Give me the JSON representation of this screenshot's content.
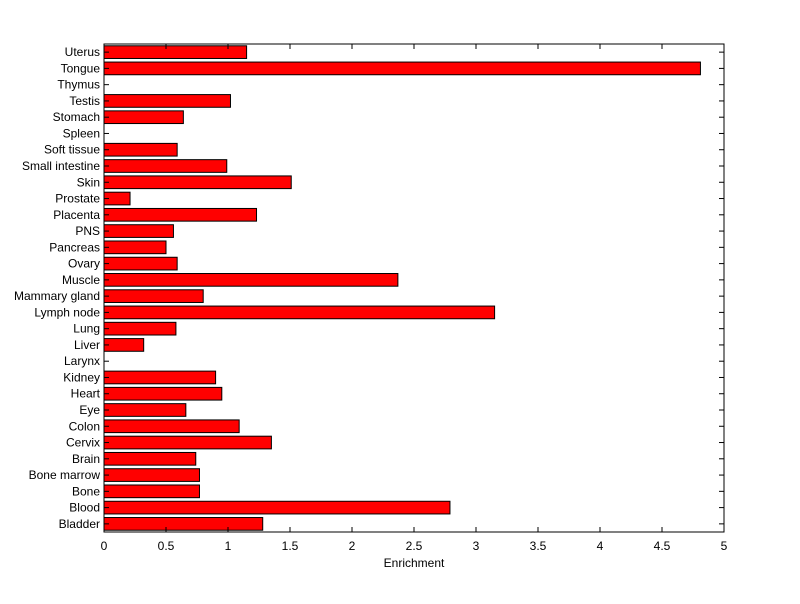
{
  "chart_data": {
    "type": "bar",
    "orientation": "horizontal",
    "title": "",
    "xlabel": "Enrichment",
    "ylabel": "",
    "xlim": [
      0,
      5
    ],
    "xticks": [
      "0",
      "0.5",
      "1",
      "1.5",
      "2",
      "2.5",
      "3",
      "3.5",
      "4",
      "4.5",
      "5"
    ],
    "grid": false,
    "bar_color": "#ff0000",
    "edge_color": "#000000",
    "categories": [
      "Bladder",
      "Blood",
      "Bone",
      "Bone marrow",
      "Brain",
      "Cervix",
      "Colon",
      "Eye",
      "Heart",
      "Kidney",
      "Larynx",
      "Liver",
      "Lung",
      "Lymph node",
      "Mammary gland",
      "Muscle",
      "Ovary",
      "Pancreas",
      "PNS",
      "Placenta",
      "Prostate",
      "Skin",
      "Small intestine",
      "Soft tissue",
      "Spleen",
      "Stomach",
      "Testis",
      "Thymus",
      "Tongue",
      "Uterus"
    ],
    "values": [
      1.28,
      2.79,
      0.77,
      0.77,
      0.74,
      1.35,
      1.09,
      0.66,
      0.95,
      0.9,
      0,
      0.32,
      0.58,
      3.15,
      0.8,
      2.37,
      0.59,
      0.5,
      0.56,
      1.23,
      0.21,
      1.51,
      0.99,
      0.59,
      0,
      0.64,
      1.02,
      0,
      4.81,
      1.15
    ]
  }
}
